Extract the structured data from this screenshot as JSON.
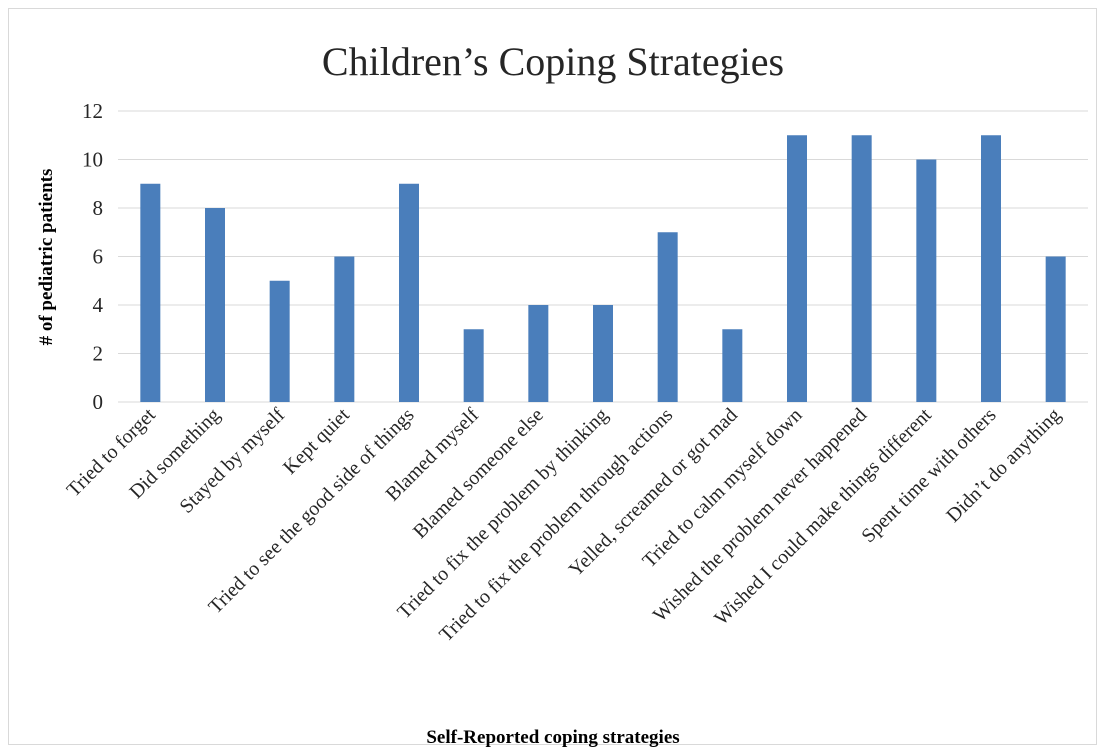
{
  "chart_data": {
    "type": "bar",
    "title": "Children’s Coping Strategies",
    "xlabel": "Self-Reported coping strategies",
    "ylabel": "# of pediatric patients",
    "ylim": [
      0,
      12
    ],
    "yticks": [
      0,
      2,
      4,
      6,
      8,
      10,
      12
    ],
    "grid": true,
    "categories": [
      "Tried to forget",
      "Did something",
      "Stayed by myself",
      "Kept quiet",
      "Tried to see the good side of things",
      "Blamed myself",
      "Blamed someone else",
      "Tried to fix the problem by thinking",
      "Tried to fix the problem through actions",
      "Yelled, screamed or got mad",
      "Tried to calm myself down",
      "Wished the problem never happened",
      "Wished I could make things different",
      "Spent time with others",
      "Didn’t do anything"
    ],
    "values": [
      9,
      8,
      5,
      6,
      9,
      3,
      4,
      4,
      7,
      3,
      11,
      11,
      10,
      11,
      6
    ],
    "colors": {
      "bar": "#4a7ebb",
      "grid": "#d9d9d9",
      "text": "#262626"
    }
  }
}
